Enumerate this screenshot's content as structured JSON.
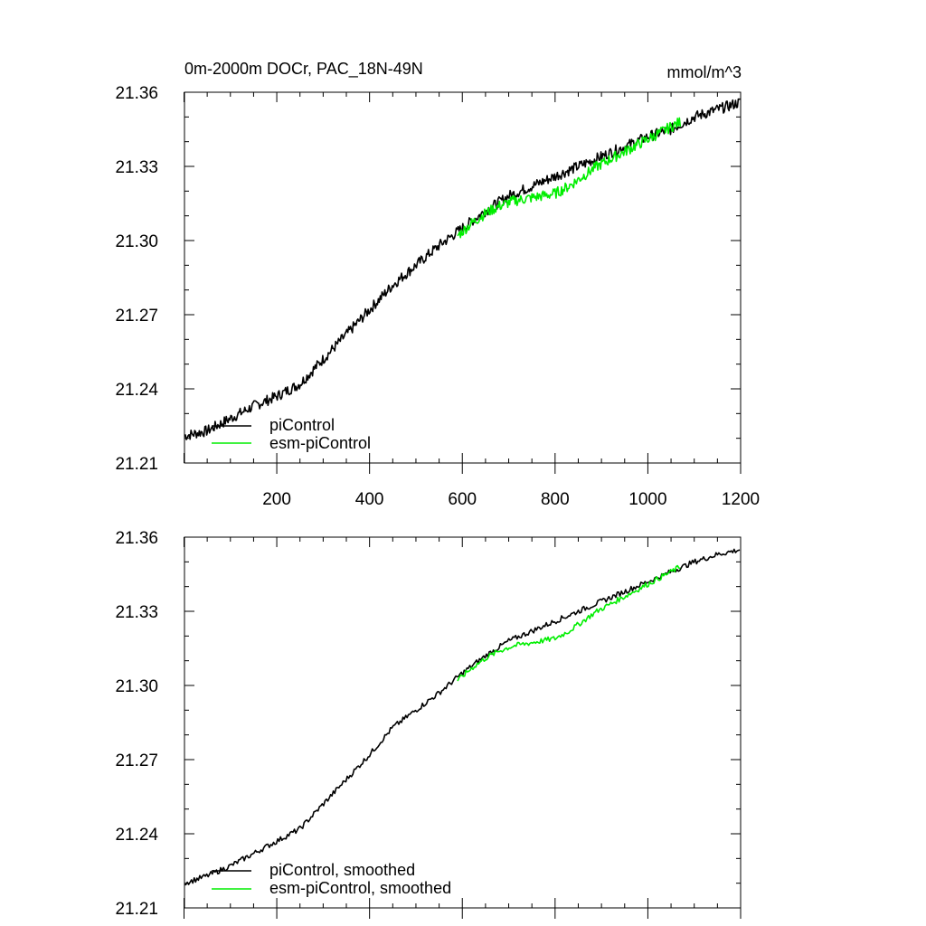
{
  "chart_data": [
    {
      "type": "line",
      "title": "0m-2000m DOCr, PAC_18N-49N",
      "units": "mmol/m^3",
      "xlim": [
        1,
        1200
      ],
      "ylim": [
        21.21,
        21.36
      ],
      "xticks": [
        200,
        400,
        600,
        800,
        1000,
        1200
      ],
      "xtick_labels": [
        "200",
        "400",
        "600",
        "800",
        "1000",
        "1200"
      ],
      "yticks": [
        21.21,
        21.24,
        21.27,
        21.3,
        21.33,
        21.36
      ],
      "ytick_labels": [
        "21.21",
        "21.24",
        "21.27",
        "21.30",
        "21.33",
        "21.36"
      ],
      "legend_position": "bottom-left",
      "series": [
        {
          "name": "piControl",
          "color": "#000000",
          "x": [
            1,
            50,
            100,
            150,
            200,
            250,
            300,
            350,
            400,
            450,
            500,
            550,
            600,
            650,
            700,
            750,
            800,
            850,
            900,
            950,
            1000,
            1050,
            1100,
            1150,
            1200
          ],
          "y": [
            21.221,
            21.223,
            21.228,
            21.233,
            21.237,
            21.242,
            21.252,
            21.262,
            21.272,
            21.282,
            21.29,
            21.298,
            21.305,
            21.312,
            21.318,
            21.322,
            21.326,
            21.33,
            21.334,
            21.338,
            21.342,
            21.345,
            21.35,
            21.353,
            21.356
          ]
        },
        {
          "name": "esm-piControl",
          "color": "#00ee00",
          "x": [
            590,
            620,
            650,
            680,
            710,
            740,
            770,
            800,
            830,
            860,
            890,
            920,
            950,
            980,
            1010,
            1040,
            1070
          ],
          "y": [
            21.302,
            21.307,
            21.311,
            21.314,
            21.316,
            21.317,
            21.318,
            21.319,
            21.322,
            21.326,
            21.33,
            21.333,
            21.336,
            21.339,
            21.342,
            21.345,
            21.348
          ]
        }
      ]
    },
    {
      "type": "line",
      "title": "",
      "xlim": [
        1,
        1200
      ],
      "ylim": [
        21.21,
        21.36
      ],
      "yticks": [
        21.21,
        21.24,
        21.27,
        21.3,
        21.33,
        21.36
      ],
      "ytick_labels": [
        "21.21",
        "21.24",
        "21.27",
        "21.30",
        "21.33",
        "21.36"
      ],
      "legend_position": "bottom-left",
      "series": [
        {
          "name": "piControl, smoothed",
          "color": "#000000",
          "x": [
            1,
            50,
            100,
            150,
            200,
            250,
            300,
            350,
            400,
            450,
            500,
            550,
            600,
            650,
            700,
            750,
            800,
            850,
            900,
            950,
            1000,
            1050,
            1100,
            1150,
            1200
          ],
          "y": [
            21.22,
            21.223,
            21.227,
            21.232,
            21.237,
            21.242,
            21.252,
            21.262,
            21.272,
            21.283,
            21.29,
            21.297,
            21.305,
            21.312,
            21.318,
            21.322,
            21.326,
            21.33,
            21.334,
            21.338,
            21.342,
            21.346,
            21.35,
            21.353,
            21.355
          ]
        },
        {
          "name": "esm-piControl, smoothed",
          "color": "#00ee00",
          "x": [
            590,
            620,
            650,
            680,
            710,
            740,
            770,
            800,
            830,
            860,
            890,
            920,
            950,
            980,
            1010,
            1040,
            1070
          ],
          "y": [
            21.302,
            21.307,
            21.311,
            21.314,
            21.316,
            21.317,
            21.318,
            21.319,
            21.322,
            21.326,
            21.33,
            21.333,
            21.336,
            21.339,
            21.342,
            21.345,
            21.348
          ]
        }
      ]
    }
  ]
}
